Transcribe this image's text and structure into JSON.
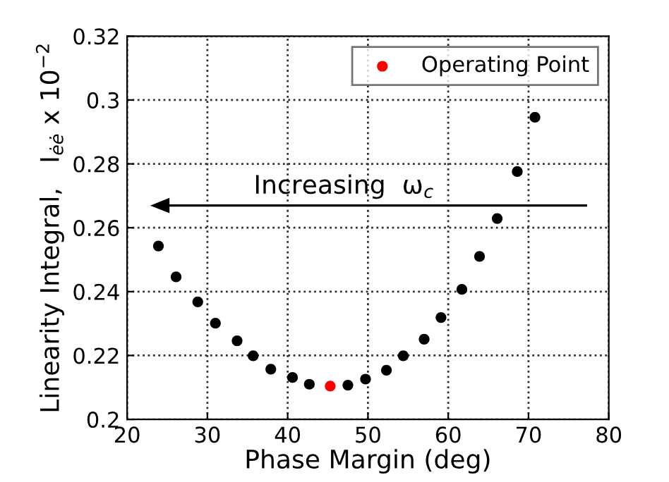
{
  "chart_data": {
    "type": "scatter",
    "xlabel": "Phase Margin (deg)",
    "ylabel": "Linearity Integral,   I$_{ėė}$ x 10$^{−2}$",
    "series": [
      {
        "color": "#000000",
        "x": [
          23.9,
          26.1,
          28.8,
          31.0,
          33.7,
          35.7,
          37.9,
          40.6,
          42.7,
          47.5,
          49.7,
          52.3,
          54.4,
          57.0,
          59.1,
          61.7,
          63.9,
          66.1,
          68.6,
          70.8
        ],
        "values": [
          0.2543,
          0.2446,
          0.2368,
          0.2301,
          0.2246,
          0.2199,
          0.2157,
          0.2131,
          0.211,
          0.2107,
          0.2126,
          0.2154,
          0.2199,
          0.2251,
          0.2319,
          0.2407,
          0.251,
          0.2629,
          0.2776,
          0.2946
        ]
      },
      {
        "name": "Operating Point",
        "color": "#ff0000",
        "x": [
          45.3
        ],
        "values": [
          0.2104
        ]
      }
    ],
    "xlim": [
      20,
      80
    ],
    "xticks": [
      20,
      30,
      40,
      50,
      60,
      70,
      80
    ],
    "ylim": [
      0.2,
      0.32
    ],
    "yticks": [
      0.2,
      0.22,
      0.24,
      0.26,
      0.28,
      0.3,
      0.32
    ],
    "grid": true,
    "legend": "top right",
    "marker": "circle",
    "annotations": [
      "Increasing  ω$_{c}$"
    ]
  }
}
